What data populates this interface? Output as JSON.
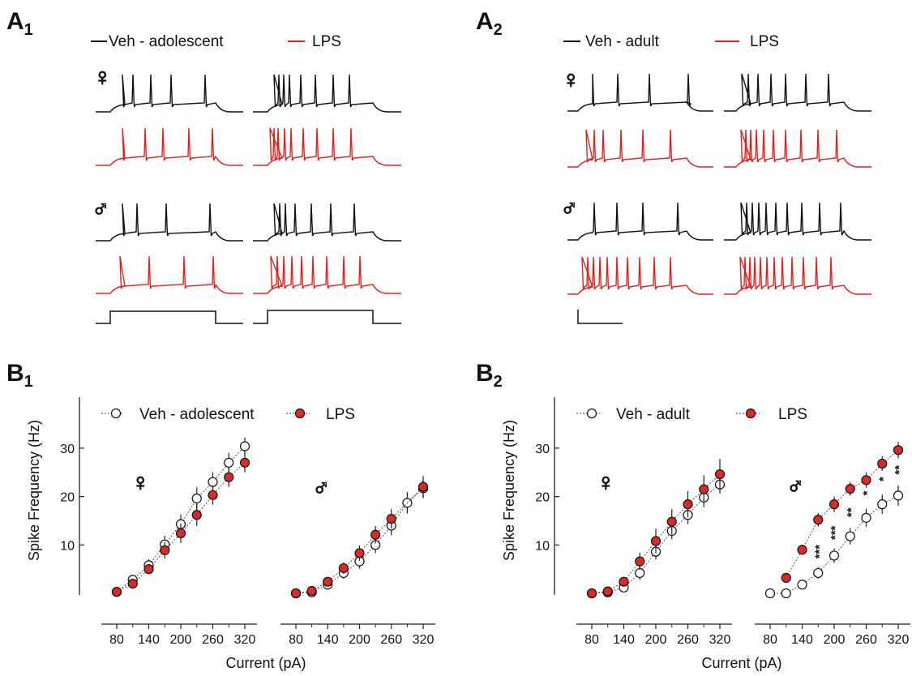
{
  "panels": {
    "A1": {
      "letter": "A",
      "sub": "1"
    },
    "A2": {
      "letter": "A",
      "sub": "2"
    },
    "B1": {
      "letter": "B",
      "sub": "1"
    },
    "B2": {
      "letter": "B",
      "sub": "2"
    }
  },
  "legends": {
    "a1": {
      "veh": "Veh - adolescent",
      "lps": "LPS"
    },
    "a2": {
      "veh": "Veh - adult",
      "lps": "LPS"
    },
    "b1": {
      "veh": "Veh - adolescent",
      "lps": "LPS"
    },
    "b2": {
      "veh": "Veh - adult",
      "lps": "LPS"
    }
  },
  "sex_symbols": {
    "female": "♀",
    "male": "♂"
  },
  "colors": {
    "veh": "#000000",
    "lps": "#e02020",
    "lps_fill": "#d92a2a",
    "axis": "#222222"
  },
  "chart_data": [
    {
      "type": "scatter",
      "panel": "B1",
      "subset": "female",
      "xlabel": "Current (pA)",
      "ylabel": "Spike Frequency (Hz)",
      "x_ticks": [
        80,
        140,
        200,
        260,
        320
      ],
      "y_ticks": [
        10,
        20,
        30
      ],
      "series": [
        {
          "name": "Veh - adolescent",
          "x": [
            80,
            110,
            140,
            170,
            200,
            230,
            260,
            290,
            320
          ],
          "y": [
            0.3,
            2.8,
            5.8,
            10.1,
            14.3,
            19.6,
            23.0,
            27.0,
            30.4
          ],
          "err": [
            0.4,
            0.6,
            1.2,
            1.8,
            2.0,
            2.3,
            2.0,
            2.0,
            1.8
          ]
        },
        {
          "name": "LPS",
          "x": [
            80,
            110,
            140,
            170,
            200,
            230,
            260,
            290,
            320
          ],
          "y": [
            0.3,
            2.0,
            5.0,
            8.9,
            12.4,
            16.2,
            20.3,
            24.0,
            27.0
          ],
          "err": [
            0.4,
            0.7,
            1.0,
            1.7,
            2.0,
            2.3,
            2.0,
            2.0,
            2.0
          ]
        }
      ]
    },
    {
      "type": "scatter",
      "panel": "B1",
      "subset": "male",
      "xlabel": "Current (pA)",
      "x_ticks": [
        80,
        140,
        200,
        260,
        320
      ],
      "series": [
        {
          "name": "Veh - adolescent",
          "x": [
            80,
            110,
            140,
            170,
            200,
            230,
            260,
            290,
            320
          ],
          "y": [
            0.0,
            0.2,
            1.8,
            4.2,
            6.6,
            10.0,
            14.0,
            18.7,
            21.7
          ],
          "err": [
            0.3,
            0.4,
            0.6,
            1.2,
            1.5,
            1.7,
            2.0,
            2.2,
            2.0
          ]
        },
        {
          "name": "LPS",
          "x": [
            80,
            110,
            140,
            170,
            200,
            230,
            260,
            290,
            320
          ],
          "y": [
            0.0,
            0.5,
            2.4,
            5.2,
            8.3,
            12.1,
            15.4,
            null,
            22.0
          ],
          "err": [
            0.3,
            0.4,
            0.6,
            1.2,
            1.6,
            1.8,
            2.0,
            null,
            2.3
          ]
        }
      ]
    },
    {
      "type": "scatter",
      "panel": "B2",
      "subset": "female",
      "xlabel": "Current (pA)",
      "ylabel": "Spike Frequency (Hz)",
      "x_ticks": [
        80,
        140,
        200,
        260,
        320
      ],
      "y_ticks": [
        10,
        20,
        30
      ],
      "series": [
        {
          "name": "Veh - adult",
          "x": [
            80,
            110,
            140,
            170,
            200,
            230,
            260,
            290,
            320
          ],
          "y": [
            0.0,
            0.2,
            1.2,
            4.2,
            8.6,
            12.9,
            16.2,
            19.8,
            22.5
          ],
          "err": [
            0.3,
            0.4,
            0.6,
            1.4,
            1.6,
            1.7,
            1.9,
            2.0,
            1.9
          ]
        },
        {
          "name": "LPS",
          "x": [
            80,
            110,
            140,
            170,
            200,
            230,
            260,
            290,
            320
          ],
          "y": [
            0.0,
            0.4,
            2.4,
            6.6,
            10.8,
            14.8,
            18.4,
            21.5,
            24.6
          ],
          "err": [
            0.3,
            0.4,
            0.7,
            1.8,
            2.5,
            2.6,
            2.7,
            2.9,
            3.2
          ]
        }
      ]
    },
    {
      "type": "scatter",
      "panel": "B2",
      "subset": "male",
      "xlabel": "Current (pA)",
      "x_ticks": [
        80,
        140,
        200,
        260,
        320
      ],
      "series": [
        {
          "name": "Veh - adult",
          "x": [
            80,
            110,
            140,
            170,
            200,
            230,
            260,
            290,
            320
          ],
          "y": [
            0.0,
            0.0,
            1.8,
            4.2,
            7.8,
            11.8,
            15.6,
            18.4,
            20.2
          ],
          "err": [
            0.3,
            0.3,
            0.5,
            1.2,
            1.5,
            1.7,
            1.9,
            2.0,
            2.1
          ]
        },
        {
          "name": "LPS",
          "x": [
            80,
            110,
            140,
            170,
            200,
            230,
            260,
            290,
            320
          ],
          "y": [
            null,
            3.2,
            9.0,
            15.2,
            18.4,
            21.6,
            23.4,
            26.8,
            29.6
          ],
          "err": [
            null,
            0.3,
            1.0,
            1.4,
            1.6,
            1.4,
            1.6,
            1.5,
            1.7
          ]
        }
      ],
      "annotations": [
        {
          "x": 170,
          "label": "***"
        },
        {
          "x": 200,
          "label": "***"
        },
        {
          "x": 230,
          "label": "**"
        },
        {
          "x": 260,
          "label": "*"
        },
        {
          "x": 290,
          "label": "*"
        },
        {
          "x": 320,
          "label": "**"
        }
      ]
    }
  ]
}
